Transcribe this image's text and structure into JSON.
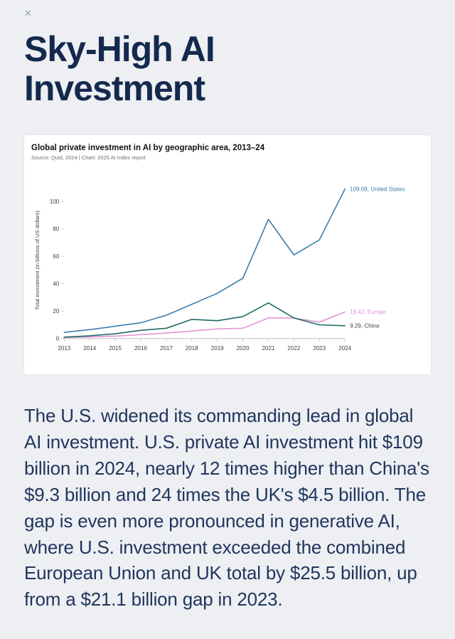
{
  "page": {
    "close_label": "✕",
    "title_line1": "Sky-High AI",
    "title_line2": "Investment"
  },
  "chart": {
    "title": "Global private investment in AI by geographic area, 2013–24",
    "source": "Source: Quid, 2024 | Chart: 2025 AI Index report",
    "ylabel": "Total investment (in billions of US dollars)"
  },
  "chart_data": {
    "type": "line",
    "title": "Global private investment in AI by geographic area, 2013–24",
    "xlabel": "",
    "ylabel": "Total investment (in billions of US dollars)",
    "x": [
      2013,
      2014,
      2015,
      2016,
      2017,
      2018,
      2019,
      2020,
      2021,
      2022,
      2023,
      2024
    ],
    "ylim": [
      0,
      114
    ],
    "yticks": [
      0,
      20,
      40,
      60,
      80,
      100
    ],
    "grid": false,
    "legend_position": "end-labels-right",
    "series": [
      {
        "name": "United States",
        "color": "#3b7fb0",
        "label_color": "#3b7fb0",
        "end_label": "109.08, United States",
        "values": [
          4.5,
          6.5,
          9,
          11.5,
          17,
          25,
          33,
          44,
          87,
          61,
          72,
          109.08
        ]
      },
      {
        "name": "Europe",
        "color": "#e293d6",
        "label_color": "#e293d6",
        "end_label": "19.42, Europe",
        "values": [
          0.8,
          1.2,
          1.8,
          2.8,
          4,
          5.5,
          7,
          7.5,
          15,
          15,
          12,
          19.42
        ]
      },
      {
        "name": "China",
        "color": "#1f6b66",
        "label_color": "#3c4650",
        "end_label": "9.29, China",
        "values": [
          1,
          2,
          3.5,
          6,
          7.5,
          14,
          13,
          16,
          26,
          15,
          10,
          9.29
        ]
      }
    ]
  },
  "body": {
    "paragraph": "The U.S. widened its commanding lead in global AI investment. U.S. private AI investment hit $109 billion in 2024, nearly 12 times higher than China's $9.3 billion and 24 times the UK's $4.5 billion. The gap is even more pronounced in generative AI, where U.S. investment exceeded the combined European Union and UK total by $25.5 billion, up from a $21.1 billion gap in 2023."
  }
}
